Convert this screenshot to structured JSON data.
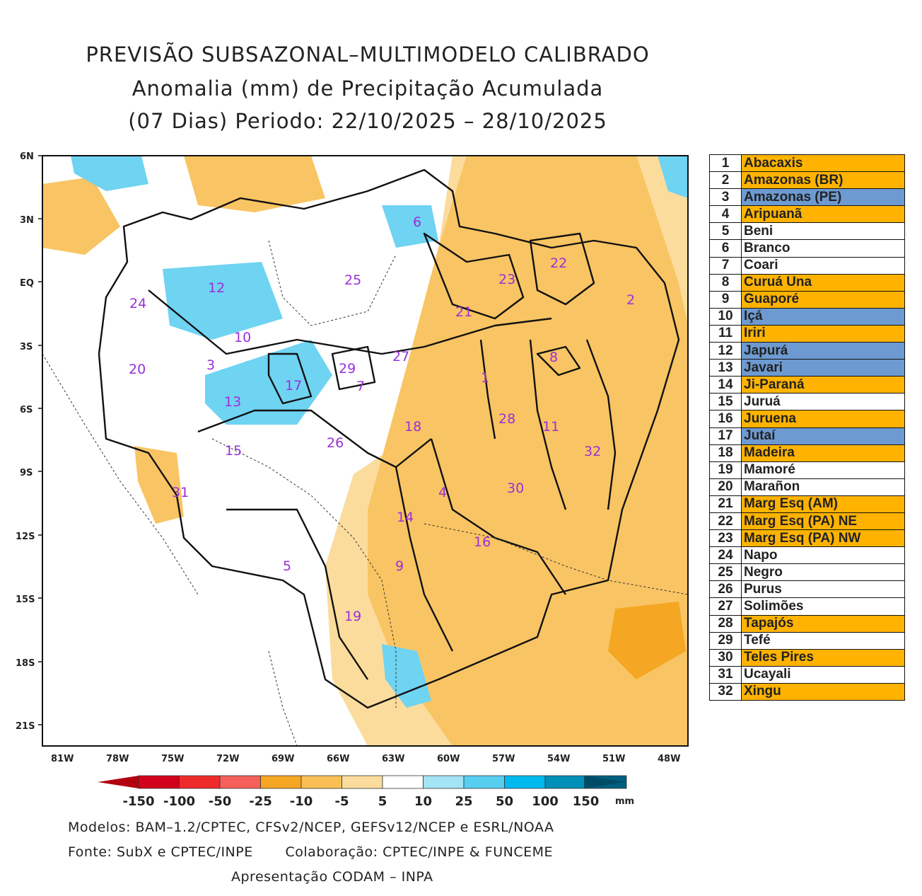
{
  "title": {
    "line1": "PREVISÃO SUBSAZONAL–MULTIMODELO CALIBRADO",
    "line2": "Anomalia (mm) de Precipitação Acumulada",
    "line3": "(07 Dias) Periodo: 22/10/2025 – 28/10/2025"
  },
  "axes": {
    "y_ticks": [
      "6N",
      "3N",
      "EQ",
      "3S",
      "6S",
      "9S",
      "12S",
      "15S",
      "18S",
      "21S"
    ],
    "x_ticks": [
      "81W",
      "78W",
      "75W",
      "72W",
      "69W",
      "66W",
      "63W",
      "60W",
      "57W",
      "54W",
      "51W",
      "48W"
    ]
  },
  "basin_labels": [
    "1",
    "2",
    "3",
    "4",
    "5",
    "6",
    "7",
    "8",
    "9",
    "10",
    "11",
    "12",
    "13",
    "14",
    "15",
    "16",
    "17",
    "18",
    "19",
    "20",
    "21",
    "22",
    "23",
    "24",
    "25",
    "26",
    "27",
    "28",
    "29",
    "30",
    "31",
    "32"
  ],
  "colors": {
    "dry_strong": "#f5a623",
    "dry_moderate": "#f9c463",
    "dry_weak": "#fbdc9c",
    "wet_weak": "#a3e4f5",
    "wet_moderate": "#6fd3f2",
    "table_dry": "#ffb300",
    "table_wet": "#6d9ad0",
    "label": "#9b30d9"
  },
  "basins": [
    {
      "num": "1",
      "name": "Abacaxis",
      "class": "dry"
    },
    {
      "num": "2",
      "name": "Amazonas (BR)",
      "class": "dry"
    },
    {
      "num": "3",
      "name": "Amazonas (PE)",
      "class": "wet"
    },
    {
      "num": "4",
      "name": "Aripuanã",
      "class": "dry"
    },
    {
      "num": "5",
      "name": "Beni",
      "class": "neutral"
    },
    {
      "num": "6",
      "name": "Branco",
      "class": "neutral"
    },
    {
      "num": "7",
      "name": "Coari",
      "class": "neutral"
    },
    {
      "num": "8",
      "name": "Curuá Una",
      "class": "dry"
    },
    {
      "num": "9",
      "name": "Guaporé",
      "class": "dry"
    },
    {
      "num": "10",
      "name": "Içá",
      "class": "wet"
    },
    {
      "num": "11",
      "name": "Iriri",
      "class": "dry"
    },
    {
      "num": "12",
      "name": "Japurá",
      "class": "wet"
    },
    {
      "num": "13",
      "name": "Javari",
      "class": "wet"
    },
    {
      "num": "14",
      "name": "Ji-Paraná",
      "class": "dry"
    },
    {
      "num": "15",
      "name": "Juruá",
      "class": "neutral"
    },
    {
      "num": "16",
      "name": "Juruena",
      "class": "dry"
    },
    {
      "num": "17",
      "name": "Jutaí",
      "class": "wet"
    },
    {
      "num": "18",
      "name": "Madeira",
      "class": "dry"
    },
    {
      "num": "19",
      "name": "Mamoré",
      "class": "neutral"
    },
    {
      "num": "20",
      "name": "Marañon",
      "class": "neutral"
    },
    {
      "num": "21",
      "name": "Marg Esq (AM)",
      "class": "dry"
    },
    {
      "num": "22",
      "name": "Marg Esq (PA) NE",
      "class": "dry"
    },
    {
      "num": "23",
      "name": "Marg Esq (PA) NW",
      "class": "dry"
    },
    {
      "num": "24",
      "name": "Napo",
      "class": "neutral"
    },
    {
      "num": "25",
      "name": "Negro",
      "class": "neutral"
    },
    {
      "num": "26",
      "name": "Purus",
      "class": "neutral"
    },
    {
      "num": "27",
      "name": "Solimões",
      "class": "neutral"
    },
    {
      "num": "28",
      "name": "Tapajós",
      "class": "dry"
    },
    {
      "num": "29",
      "name": "Tefé",
      "class": "neutral"
    },
    {
      "num": "30",
      "name": "Teles Pires",
      "class": "dry"
    },
    {
      "num": "31",
      "name": "Ucayali",
      "class": "neutral"
    },
    {
      "num": "32",
      "name": "Xingu",
      "class": "dry"
    }
  ],
  "colorbar": {
    "values": [
      "-150",
      "-100",
      "-50",
      "-25",
      "-10",
      "-5",
      "5",
      "10",
      "25",
      "50",
      "100",
      "150"
    ],
    "unit": "mm",
    "colors": [
      "#d2001a",
      "#ee2b2b",
      "#f5605a",
      "#f5a623",
      "#f9bf55",
      "#fbdc9c",
      "#ffffff",
      "#a3e4f5",
      "#57cdf0",
      "#00b9ee",
      "#008fb8",
      "#005e80"
    ],
    "end_left": "#b3000f",
    "end_right": "#004c66"
  },
  "footer": {
    "line1": "Modelos: BAM–1.2/CPTEC, CFSv2/NCEP, GEFSv12/NCEP e ESRL/NOAA",
    "line2": "Fonte: SubX e CPTEC/INPE       Colaboração: CPTEC/INPE & FUNCEME",
    "line3": "Apresentação CODAM – INPA"
  }
}
